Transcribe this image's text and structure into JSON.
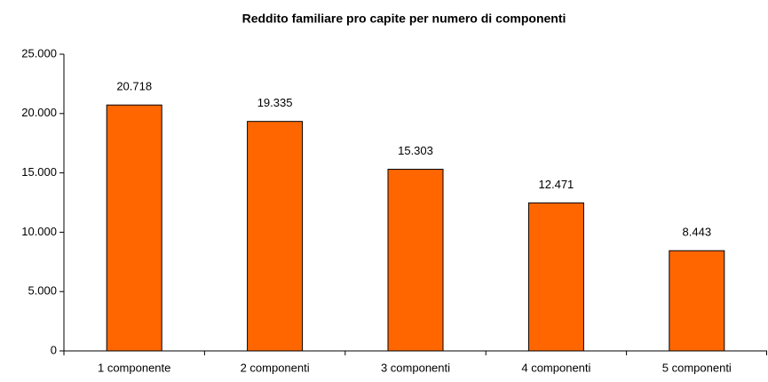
{
  "chart_data": {
    "type": "bar",
    "title": "Reddito familiare pro capite per numero di componenti",
    "categories": [
      "1 componente",
      "2 componenti",
      "3 componenti",
      "4 componenti",
      "5 componenti"
    ],
    "values": [
      20718,
      19335,
      15303,
      12471,
      8443
    ],
    "value_labels": [
      "20.718",
      "19.335",
      "15.303",
      "12.471",
      "8.443"
    ],
    "color": "#ff6600",
    "ylim": [
      0,
      25000
    ],
    "yticks": [
      0,
      {
        "value": 5000,
        "label": "5.000"
      },
      {
        "value": 10000,
        "label": "10.000"
      },
      {
        "value": 15000,
        "label": "15.000"
      },
      {
        "value": 20000,
        "label": "20.000"
      },
      {
        "value": 25000,
        "label": "25.000"
      }
    ],
    "grid": false
  }
}
